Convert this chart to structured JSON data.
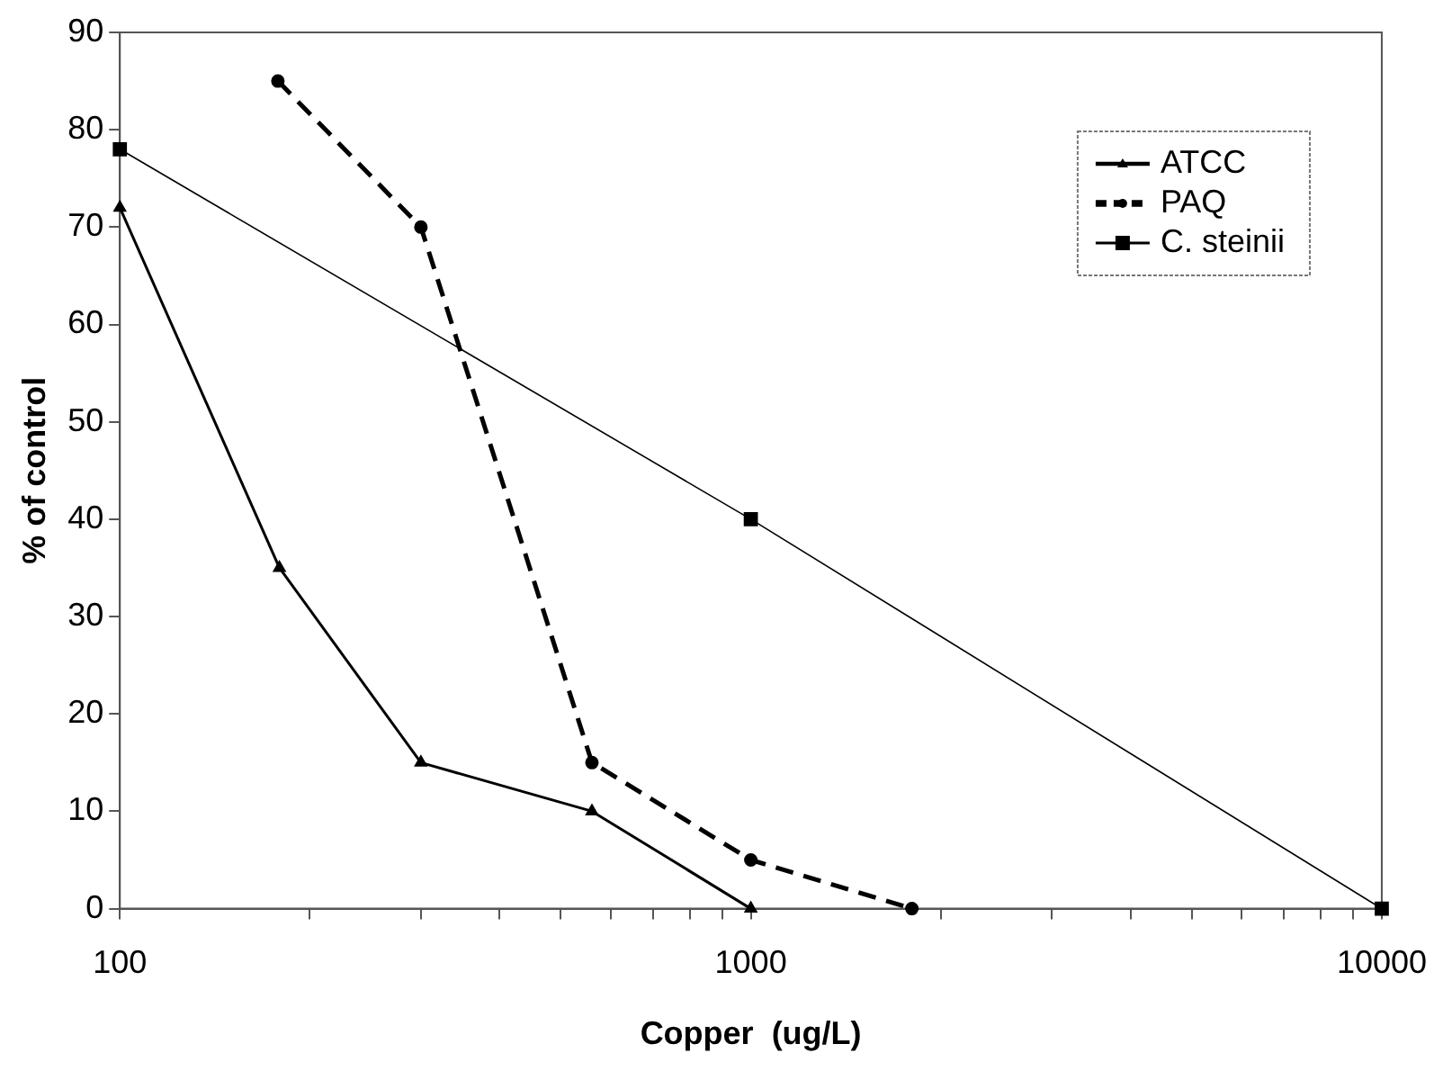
{
  "chart_data": {
    "type": "line",
    "xlabel": "Copper  (ug/L)",
    "ylabel": "% of control",
    "log": "x",
    "grid": false,
    "legend": "top right",
    "xlim": [
      100,
      10000
    ],
    "xticks": [
      100,
      {
        "value": 200,
        "label": null
      },
      {
        "value": 300,
        "label": null
      },
      {
        "value": 400,
        "label": null
      },
      {
        "value": 500,
        "label": null
      },
      {
        "value": 600,
        "label": null
      },
      {
        "value": 700,
        "label": null
      },
      {
        "value": 800,
        "label": null
      },
      {
        "value": 900,
        "label": null
      },
      1000,
      {
        "value": 2000,
        "label": null
      },
      {
        "value": 3000,
        "label": null
      },
      {
        "value": 4000,
        "label": null
      },
      {
        "value": 5000,
        "label": null
      },
      {
        "value": 6000,
        "label": null
      },
      {
        "value": 7000,
        "label": null
      },
      {
        "value": 8000,
        "label": null
      },
      {
        "value": 9000,
        "label": null
      },
      10000
    ],
    "ylim": [
      0,
      90
    ],
    "yticks": [
      0,
      10,
      20,
      30,
      40,
      50,
      60,
      70,
      80,
      90
    ],
    "series": [
      {
        "name": "ATCC",
        "color": "#000000",
        "marker": "triangle",
        "line_style": "solid",
        "x": [
          100,
          179,
          300,
          560,
          1000
        ],
        "values": [
          72,
          35,
          15,
          10,
          0
        ]
      },
      {
        "name": "PAQ",
        "color": "#000000",
        "marker": "circle",
        "line_style": "dashed",
        "x": [
          178,
          300,
          560,
          1000,
          1800
        ],
        "values": [
          85,
          70,
          15,
          5,
          0
        ]
      },
      {
        "name": "C. steinii",
        "color": "#000000",
        "marker": "square",
        "line_style": "solid",
        "x": [
          100,
          1000,
          10000
        ],
        "values": [
          78,
          40,
          0
        ]
      }
    ]
  }
}
